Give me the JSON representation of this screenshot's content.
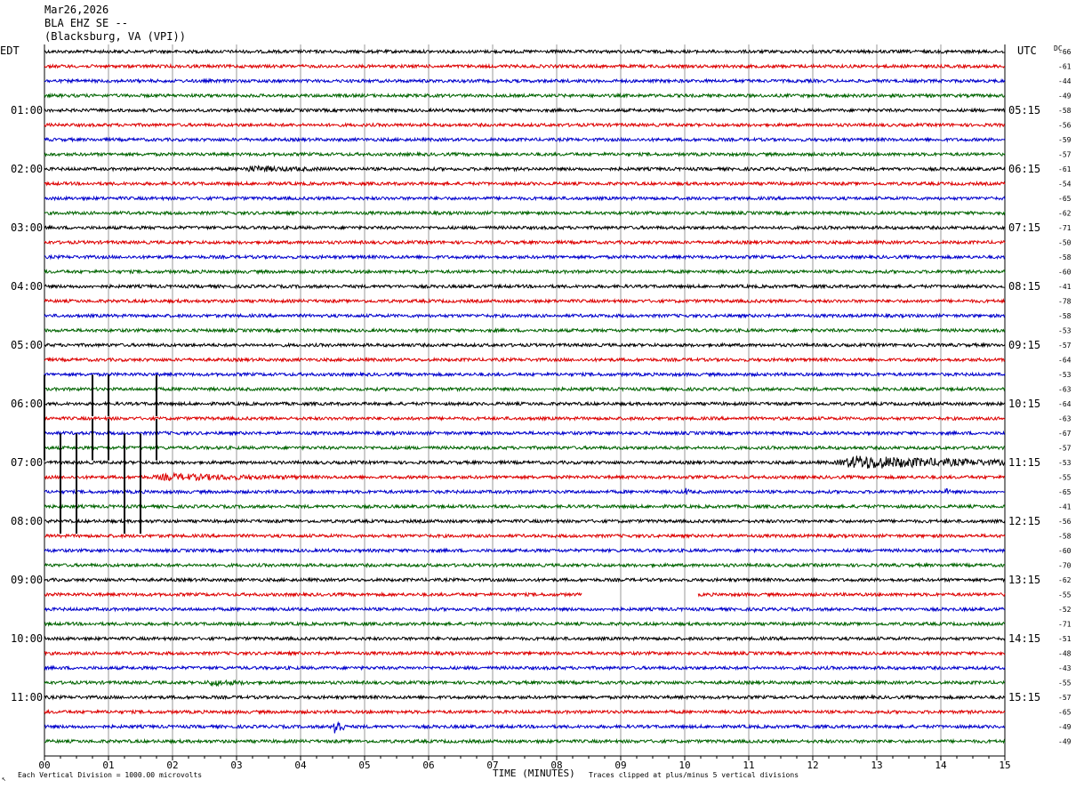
{
  "header": {
    "date": "Mar26,2026",
    "station": "BLA EHZ SE --",
    "location": "(Blacksburg, VA (VPI))"
  },
  "labels": {
    "left_zone": "EDT",
    "right_zone": "UTC",
    "dc_header": "DC",
    "xaxis_title": "TIME (MINUTES)",
    "scale_note": "Each Vertical Division = 1000.00 microvolts",
    "clip_note": "Traces clipped at plus/minus 5 vertical divisions"
  },
  "colors": {
    "trace_cycle": [
      "#000000",
      "#dd0000",
      "#0000cc",
      "#006400"
    ],
    "grid": "#9a9a9a",
    "frame": "#000000"
  },
  "chart_data": {
    "type": "line",
    "title": "BLA EHZ SE --",
    "xlabel": "TIME (MINUTES)",
    "xlim": [
      0,
      15
    ],
    "x_tick_labels": [
      "00",
      "01",
      "02",
      "03",
      "04",
      "05",
      "06",
      "07",
      "08",
      "09",
      "10",
      "11",
      "12",
      "13",
      "14",
      "15"
    ],
    "trace_minutes": 15,
    "trace_count": 48,
    "edt_hour_labels": [
      {
        "trace": 4,
        "text": "01:00"
      },
      {
        "trace": 8,
        "text": "02:00"
      },
      {
        "trace": 12,
        "text": "03:00"
      },
      {
        "trace": 16,
        "text": "04:00"
      },
      {
        "trace": 20,
        "text": "05:00"
      },
      {
        "trace": 24,
        "text": "06:00"
      },
      {
        "trace": 28,
        "text": "07:00"
      },
      {
        "trace": 32,
        "text": "08:00"
      },
      {
        "trace": 36,
        "text": "09:00"
      },
      {
        "trace": 40,
        "text": "10:00"
      },
      {
        "trace": 44,
        "text": "11:00"
      }
    ],
    "utc_hour_labels": [
      {
        "trace": 4,
        "text": "05:15"
      },
      {
        "trace": 8,
        "text": "06:15"
      },
      {
        "trace": 12,
        "text": "07:15"
      },
      {
        "trace": 16,
        "text": "08:15"
      },
      {
        "trace": 20,
        "text": "09:15"
      },
      {
        "trace": 24,
        "text": "10:15"
      },
      {
        "trace": 28,
        "text": "11:15"
      },
      {
        "trace": 32,
        "text": "12:15"
      },
      {
        "trace": 36,
        "text": "13:15"
      },
      {
        "trace": 40,
        "text": "14:15"
      },
      {
        "trace": 44,
        "text": "15:15"
      }
    ],
    "dc_offsets": [
      "-66",
      "-61",
      "-44",
      "-49",
      "-58",
      "-56",
      "-59",
      "-57",
      "-61",
      "-54",
      "-65",
      "-62",
      "-71",
      "-50",
      "-58",
      "-60",
      "-41",
      "-78",
      "-58",
      "-53",
      "-57",
      "-64",
      "-53",
      "-63",
      "-64",
      "-63",
      "-67",
      "-57",
      "-53",
      "-55",
      "-65",
      "-41",
      "-56",
      "-58",
      "-60",
      "-70",
      "-62",
      "-55",
      "-52",
      "-71",
      "-51",
      "-48",
      "-43",
      "-55",
      "-57",
      "-65",
      "-49",
      "-49"
    ],
    "events": [
      {
        "trace": 28,
        "from_min": 12.3,
        "to_min": 15.0,
        "amplitude_div": 2.2,
        "note": "regional/teleseismic arrival"
      },
      {
        "trace": 29,
        "from_min": 1.6,
        "to_min": 4.0,
        "amplitude_div": 1.0
      },
      {
        "trace": 46,
        "from_min": 4.5,
        "to_min": 4.7,
        "amplitude_div": 3.5
      },
      {
        "trace": 30,
        "from_min": 10.0,
        "to_min": 10.1,
        "amplitude_div": 1.2
      },
      {
        "trace": 30,
        "from_min": 14.05,
        "to_min": 14.15,
        "amplitude_div": 1.2
      },
      {
        "trace": 8,
        "from_min": 3.0,
        "to_min": 4.5,
        "amplitude_div": 0.8
      },
      {
        "trace": 43,
        "from_min": 2.5,
        "to_min": 3.2,
        "amplitude_div": 0.9
      }
    ],
    "spikes": [
      {
        "trace_from": 23,
        "trace_to": 27,
        "minute": 0.0
      },
      {
        "trace_from": 23,
        "trace_to": 24,
        "minute": 0.75
      },
      {
        "trace_from": 23,
        "trace_to": 24,
        "minute": 1.0
      },
      {
        "trace_from": 23,
        "trace_to": 24,
        "minute": 1.75
      },
      {
        "trace_from": 26,
        "trace_to": 27,
        "minute": 0.75
      },
      {
        "trace_from": 26,
        "trace_to": 27,
        "minute": 1.0
      },
      {
        "trace_from": 26,
        "trace_to": 27,
        "minute": 1.75
      },
      {
        "trace_from": 27,
        "trace_to": 32,
        "minute": 0.25
      },
      {
        "trace_from": 27,
        "trace_to": 32,
        "minute": 0.5
      },
      {
        "trace_from": 27,
        "trace_to": 32,
        "minute": 1.25
      },
      {
        "trace_from": 27,
        "trace_to": 32,
        "minute": 1.5
      }
    ],
    "gaps": [
      {
        "trace": 37,
        "from_min": 8.4,
        "to_min": 10.2
      }
    ]
  }
}
